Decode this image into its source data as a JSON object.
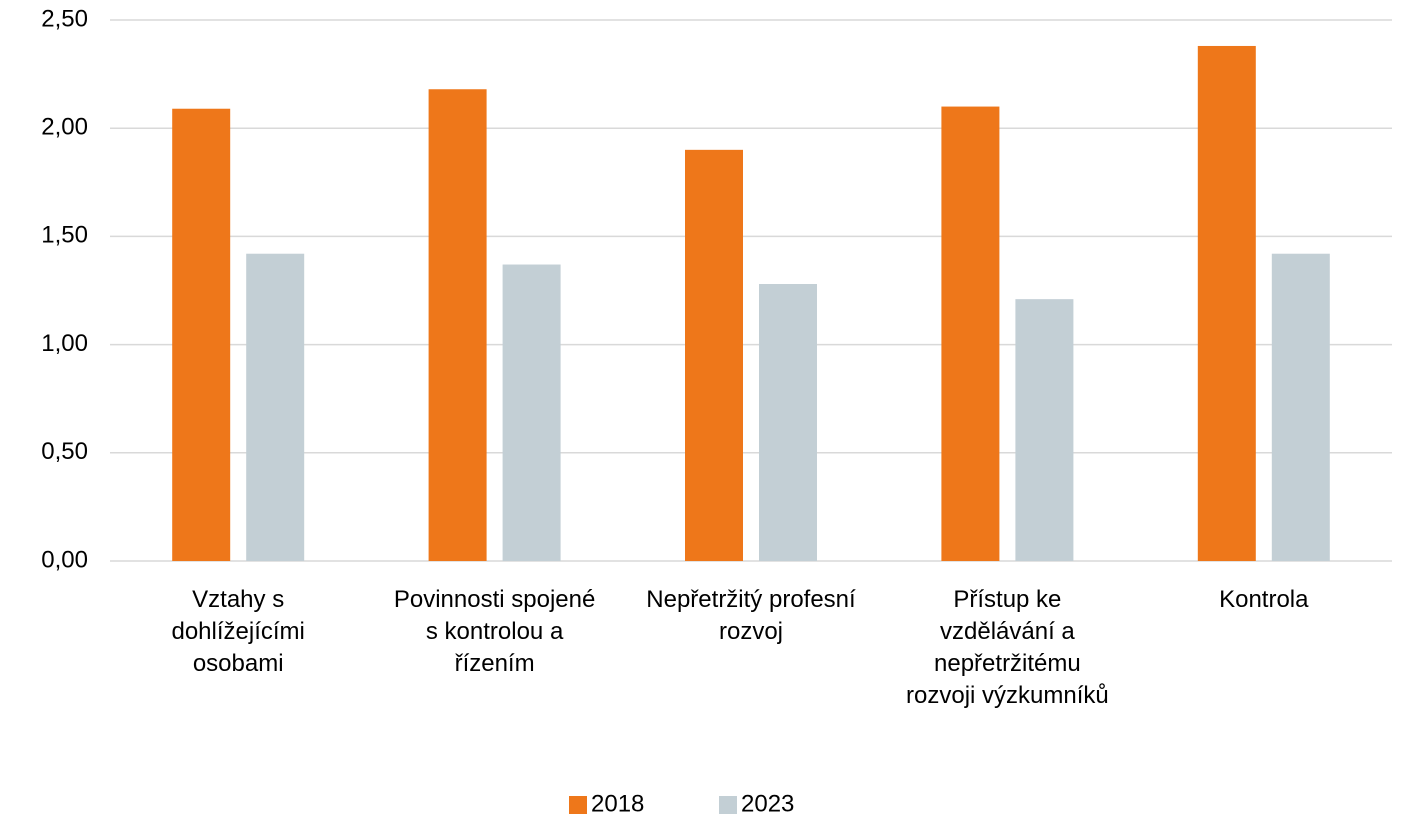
{
  "chart_data": {
    "type": "bar",
    "categories": [
      "Vztahy s dohlížejícími osobami",
      "Povinnosti spojené s kontrolou a řízením",
      "Nepřetržitý profesní rozvoj",
      "Přístup ke vzdělávání a nepřetržitému rozvoji výzkumníků",
      "Kontrola"
    ],
    "series": [
      {
        "name": "2018",
        "color": "#ee771a",
        "values": [
          2.09,
          2.18,
          1.9,
          2.1,
          2.38
        ]
      },
      {
        "name": "2023",
        "color": "#c3cfd5",
        "values": [
          1.42,
          1.37,
          1.28,
          1.21,
          1.42
        ]
      }
    ],
    "ylim": [
      0,
      2.5
    ],
    "yticks": [
      {
        "value": 0,
        "label": "0,00"
      },
      {
        "value": 0.5,
        "label": "0,50"
      },
      {
        "value": 1,
        "label": "1,00"
      },
      {
        "value": 1.5,
        "label": "1,50"
      },
      {
        "value": 2,
        "label": "2,00"
      },
      {
        "value": 2.5,
        "label": "2,50"
      }
    ],
    "grid": true,
    "legend": "bottom"
  }
}
